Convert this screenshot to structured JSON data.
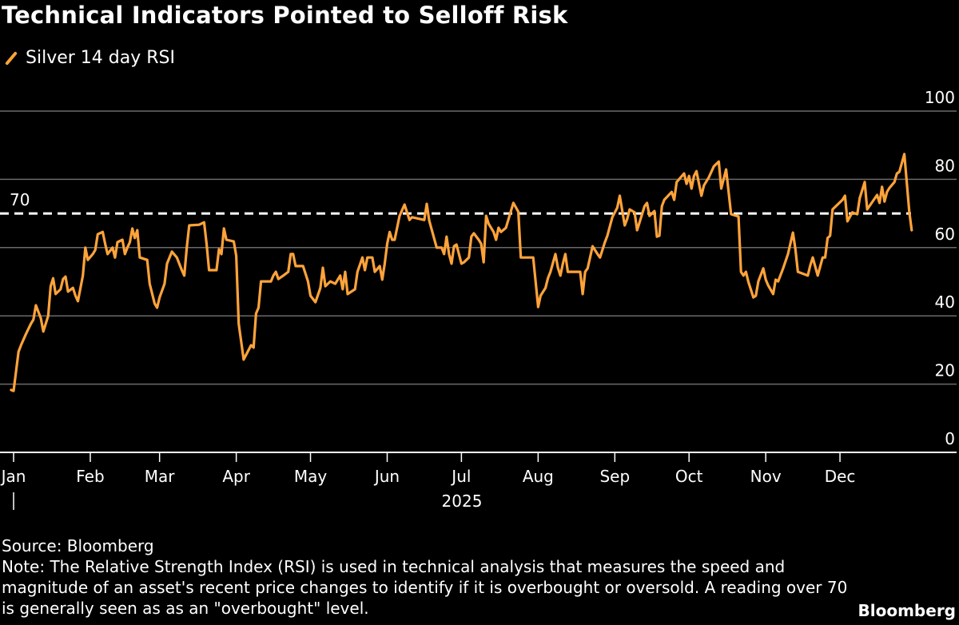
{
  "chart_data": {
    "type": "line",
    "title": "Technical Indicators Pointed to Selloff Risk",
    "xlabel": "2025",
    "ylabel": "",
    "ylim": [
      0,
      100
    ],
    "yticks": [
      0,
      20,
      40,
      60,
      80,
      100
    ],
    "xtick_labels": [
      "Jan",
      "Feb",
      "Mar",
      "Apr",
      "May",
      "Jun",
      "Jul",
      "Aug",
      "Sep",
      "Oct",
      "Nov",
      "Dec"
    ],
    "xtick_dates": [
      "2025-01-01",
      "2025-02-01",
      "2025-03-01",
      "2025-04-01",
      "2025-05-01",
      "2025-06-01",
      "2025-07-01",
      "2025-08-01",
      "2025-09-01",
      "2025-10-01",
      "2025-11-01",
      "2025-12-01"
    ],
    "grid": true,
    "legend_placement": "top-left",
    "reference_line": {
      "value": 70,
      "label": "70",
      "style": "dashed",
      "color": "#ffffff"
    },
    "series": [
      {
        "name": "Silver 14 day RSI",
        "color": "#ffa33a",
        "points": [
          [
            "2024-12-31",
            18.3
          ],
          [
            "2025-01-01",
            18
          ],
          [
            "2025-01-03",
            29.5
          ],
          [
            "2025-01-04",
            31.4
          ],
          [
            "2025-01-06",
            34.7
          ],
          [
            "2025-01-08",
            37.7
          ],
          [
            "2025-01-09",
            38.9
          ],
          [
            "2025-01-10",
            43.1
          ],
          [
            "2025-01-12",
            39.3
          ],
          [
            "2025-01-13",
            35.4
          ],
          [
            "2025-01-15",
            40
          ],
          [
            "2025-01-16",
            48.7
          ],
          [
            "2025-01-17",
            51
          ],
          [
            "2025-01-18",
            46.4
          ],
          [
            "2025-01-20",
            47.8
          ],
          [
            "2025-01-21",
            50.8
          ],
          [
            "2025-01-22",
            51.5
          ],
          [
            "2025-01-23",
            47.1
          ],
          [
            "2025-01-25",
            48.2
          ],
          [
            "2025-01-26",
            45.9
          ],
          [
            "2025-01-27",
            44.3
          ],
          [
            "2025-01-29",
            51.8
          ],
          [
            "2025-01-30",
            60
          ],
          [
            "2025-01-31",
            56.4
          ],
          [
            "2025-02-02",
            58.1
          ],
          [
            "2025-02-03",
            59.3
          ],
          [
            "2025-02-04",
            63.9
          ],
          [
            "2025-02-06",
            64.6
          ],
          [
            "2025-02-07",
            61.1
          ],
          [
            "2025-02-08",
            58.1
          ],
          [
            "2025-02-10",
            60
          ],
          [
            "2025-02-11",
            57.1
          ],
          [
            "2025-02-12",
            61.6
          ],
          [
            "2025-02-14",
            62.3
          ],
          [
            "2025-02-15",
            58.1
          ],
          [
            "2025-02-16",
            60
          ],
          [
            "2025-02-17",
            61.6
          ],
          [
            "2025-02-18",
            65.6
          ],
          [
            "2025-02-19",
            62.8
          ],
          [
            "2025-02-20",
            65.1
          ],
          [
            "2025-02-21",
            57.1
          ],
          [
            "2025-02-24",
            56.4
          ],
          [
            "2025-02-25",
            49.4
          ],
          [
            "2025-02-27",
            43.6
          ],
          [
            "2025-02-28",
            42.4
          ],
          [
            "2025-03-01",
            45.4
          ],
          [
            "2025-03-03",
            49.4
          ],
          [
            "2025-03-04",
            55.3
          ],
          [
            "2025-03-06",
            58.8
          ],
          [
            "2025-03-08",
            57.1
          ],
          [
            "2025-03-10",
            53.4
          ],
          [
            "2025-03-11",
            51.8
          ],
          [
            "2025-03-12",
            60
          ],
          [
            "2025-03-13",
            66.5
          ],
          [
            "2025-03-17",
            66.7
          ],
          [
            "2025-03-19",
            67.4
          ],
          [
            "2025-03-20",
            61.1
          ],
          [
            "2025-03-21",
            53.4
          ],
          [
            "2025-03-24",
            53.4
          ],
          [
            "2025-03-25",
            59.5
          ],
          [
            "2025-03-26",
            58.1
          ],
          [
            "2025-03-27",
            65.6
          ],
          [
            "2025-03-28",
            62.3
          ],
          [
            "2025-03-31",
            61.8
          ],
          [
            "2025-04-01",
            57.6
          ],
          [
            "2025-04-02",
            37.7
          ],
          [
            "2025-04-04",
            27.2
          ],
          [
            "2025-04-07",
            31.4
          ],
          [
            "2025-04-08",
            30.7
          ],
          [
            "2025-04-09",
            40.7
          ],
          [
            "2025-04-10",
            42.4
          ],
          [
            "2025-04-11",
            50.1
          ],
          [
            "2025-04-15",
            50.1
          ],
          [
            "2025-04-16",
            51.8
          ],
          [
            "2025-04-17",
            52.9
          ],
          [
            "2025-04-18",
            50.8
          ],
          [
            "2025-04-20",
            51.8
          ],
          [
            "2025-04-22",
            52.9
          ],
          [
            "2025-04-23",
            58.1
          ],
          [
            "2025-04-24",
            58.1
          ],
          [
            "2025-04-25",
            54.6
          ],
          [
            "2025-04-28",
            54.6
          ],
          [
            "2025-04-30",
            50.1
          ],
          [
            "2025-05-01",
            45.9
          ],
          [
            "2025-05-03",
            44
          ],
          [
            "2025-05-05",
            48.2
          ],
          [
            "2025-05-06",
            54.1
          ],
          [
            "2025-05-07",
            48.7
          ],
          [
            "2025-05-09",
            50.1
          ],
          [
            "2025-05-11",
            49.4
          ],
          [
            "2025-05-13",
            51.8
          ],
          [
            "2025-05-14",
            47.8
          ],
          [
            "2025-05-15",
            52.9
          ],
          [
            "2025-05-16",
            46.4
          ],
          [
            "2025-05-19",
            47.8
          ],
          [
            "2025-05-20",
            52.9
          ],
          [
            "2025-05-22",
            57.1
          ],
          [
            "2025-05-23",
            53.4
          ],
          [
            "2025-05-24",
            57.1
          ],
          [
            "2025-05-26",
            57.1
          ],
          [
            "2025-05-27",
            52.9
          ],
          [
            "2025-05-29",
            54.6
          ],
          [
            "2025-05-30",
            50.6
          ],
          [
            "2025-05-31",
            55.3
          ],
          [
            "2025-06-01",
            61.1
          ],
          [
            "2025-06-02",
            64.6
          ],
          [
            "2025-06-03",
            62.3
          ],
          [
            "2025-06-04",
            62.3
          ],
          [
            "2025-06-06",
            69.3
          ],
          [
            "2025-06-08",
            72.6
          ],
          [
            "2025-06-10",
            68.1
          ],
          [
            "2025-06-11",
            68.9
          ],
          [
            "2025-06-16",
            68.1
          ],
          [
            "2025-06-17",
            72.8
          ],
          [
            "2025-06-18",
            67.9
          ],
          [
            "2025-06-21",
            60
          ],
          [
            "2025-06-23",
            60
          ],
          [
            "2025-06-24",
            58.1
          ],
          [
            "2025-06-25",
            63.2
          ],
          [
            "2025-06-26",
            58.1
          ],
          [
            "2025-06-27",
            55.3
          ],
          [
            "2025-06-28",
            60.4
          ],
          [
            "2025-06-29",
            60.9
          ],
          [
            "2025-07-01",
            55.3
          ],
          [
            "2025-07-02",
            55.7
          ],
          [
            "2025-07-04",
            57.1
          ],
          [
            "2025-07-05",
            63.2
          ],
          [
            "2025-07-06",
            64.2
          ],
          [
            "2025-07-08",
            62.3
          ],
          [
            "2025-07-09",
            61.1
          ],
          [
            "2025-07-10",
            55.7
          ],
          [
            "2025-07-11",
            69.3
          ],
          [
            "2025-07-12",
            67
          ],
          [
            "2025-07-14",
            64.6
          ],
          [
            "2025-07-15",
            62.3
          ],
          [
            "2025-07-16",
            65.8
          ],
          [
            "2025-07-17",
            64.6
          ],
          [
            "2025-07-19",
            65.8
          ],
          [
            "2025-07-21",
            70.7
          ],
          [
            "2025-07-22",
            73.1
          ],
          [
            "2025-07-24",
            70.5
          ],
          [
            "2025-07-25",
            57.1
          ],
          [
            "2025-07-30",
            57.1
          ],
          [
            "2025-08-01",
            42.6
          ],
          [
            "2025-08-02",
            45.9
          ],
          [
            "2025-08-04",
            48.2
          ],
          [
            "2025-08-05",
            51.1
          ],
          [
            "2025-08-06",
            52.9
          ],
          [
            "2025-08-08",
            58.1
          ],
          [
            "2025-08-09",
            54.1
          ],
          [
            "2025-08-10",
            51.8
          ],
          [
            "2025-08-11",
            55.3
          ],
          [
            "2025-08-12",
            58.1
          ],
          [
            "2025-08-13",
            52.9
          ],
          [
            "2025-08-18",
            52.9
          ],
          [
            "2025-08-19",
            46.4
          ],
          [
            "2025-08-20",
            52.9
          ],
          [
            "2025-08-21",
            53.9
          ],
          [
            "2025-08-23",
            60.4
          ],
          [
            "2025-08-25",
            58.1
          ],
          [
            "2025-08-26",
            57.1
          ],
          [
            "2025-08-28",
            61.6
          ],
          [
            "2025-08-29",
            63.5
          ],
          [
            "2025-08-31",
            68.9
          ],
          [
            "2025-09-02",
            71.7
          ],
          [
            "2025-09-03",
            75.2
          ],
          [
            "2025-09-05",
            66.5
          ],
          [
            "2025-09-06",
            68.4
          ],
          [
            "2025-09-07",
            71.2
          ],
          [
            "2025-09-09",
            70.3
          ],
          [
            "2025-09-10",
            65.1
          ],
          [
            "2025-09-11",
            67.4
          ],
          [
            "2025-09-13",
            72.1
          ],
          [
            "2025-09-14",
            73.1
          ],
          [
            "2025-09-15",
            69.3
          ],
          [
            "2025-09-17",
            70.7
          ],
          [
            "2025-09-18",
            63.2
          ],
          [
            "2025-09-19",
            63.5
          ],
          [
            "2025-09-20",
            72.1
          ],
          [
            "2025-09-21",
            74
          ],
          [
            "2025-09-24",
            76.3
          ],
          [
            "2025-09-25",
            74
          ],
          [
            "2025-09-26",
            79.2
          ],
          [
            "2025-09-29",
            81.7
          ],
          [
            "2025-09-30",
            78.7
          ],
          [
            "2025-10-01",
            81
          ],
          [
            "2025-10-02",
            77.3
          ],
          [
            "2025-10-03",
            81
          ],
          [
            "2025-10-04",
            82.4
          ],
          [
            "2025-10-06",
            75.2
          ],
          [
            "2025-10-07",
            78.2
          ],
          [
            "2025-10-09",
            80.6
          ],
          [
            "2025-10-11",
            83.8
          ],
          [
            "2025-10-13",
            85.2
          ],
          [
            "2025-10-14",
            77.3
          ],
          [
            "2025-10-16",
            82.9
          ],
          [
            "2025-10-18",
            69.8
          ],
          [
            "2025-10-21",
            69.1
          ],
          [
            "2025-10-22",
            52.9
          ],
          [
            "2025-10-23",
            51.8
          ],
          [
            "2025-10-24",
            52.9
          ],
          [
            "2025-10-25",
            49.9
          ],
          [
            "2025-10-27",
            45.4
          ],
          [
            "2025-10-28",
            45.9
          ],
          [
            "2025-10-29",
            50.1
          ],
          [
            "2025-10-31",
            53.9
          ],
          [
            "2025-11-01",
            50.6
          ],
          [
            "2025-11-02",
            48.9
          ],
          [
            "2025-11-04",
            46.4
          ],
          [
            "2025-11-05",
            50.6
          ],
          [
            "2025-11-06",
            50.1
          ],
          [
            "2025-11-08",
            53.9
          ],
          [
            "2025-11-10",
            58.1
          ],
          [
            "2025-11-12",
            64.4
          ],
          [
            "2025-11-13",
            59.5
          ],
          [
            "2025-11-14",
            52.9
          ],
          [
            "2025-11-18",
            51.8
          ],
          [
            "2025-11-19",
            54.8
          ],
          [
            "2025-11-20",
            57.1
          ],
          [
            "2025-11-22",
            51.8
          ],
          [
            "2025-11-24",
            57.1
          ],
          [
            "2025-11-25",
            57.1
          ],
          [
            "2025-11-26",
            62.8
          ],
          [
            "2025-11-27",
            63.5
          ],
          [
            "2025-11-28",
            71.2
          ],
          [
            "2025-12-02",
            74
          ],
          [
            "2025-12-03",
            75.2
          ],
          [
            "2025-12-04",
            67.7
          ],
          [
            "2025-12-06",
            70.3
          ],
          [
            "2025-12-08",
            69.8
          ],
          [
            "2025-12-09",
            74.5
          ],
          [
            "2025-12-11",
            79.2
          ],
          [
            "2025-12-12",
            71.2
          ],
          [
            "2025-12-14",
            73.3
          ],
          [
            "2025-12-16",
            75.4
          ],
          [
            "2025-12-17",
            73.1
          ],
          [
            "2025-12-18",
            77.8
          ],
          [
            "2025-12-19",
            73.5
          ],
          [
            "2025-12-20",
            76.3
          ],
          [
            "2025-12-21",
            77.5
          ],
          [
            "2025-12-23",
            79.2
          ],
          [
            "2025-12-24",
            81.7
          ],
          [
            "2025-12-25",
            82.2
          ],
          [
            "2025-12-27",
            87.4
          ],
          [
            "2025-12-29",
            70.5
          ],
          [
            "2025-12-30",
            65.1
          ]
        ]
      }
    ]
  },
  "footer": {
    "source": "Source: Bloomberg",
    "note": "Note: The Relative Strength Index (RSI) is used in technical analysis that measures the speed and magnitude of an asset's recent price changes to identify if it is overbought or oversold. A reading over 70 is generally seen as as an \"overbought\" level.",
    "brand": "Bloomberg"
  }
}
